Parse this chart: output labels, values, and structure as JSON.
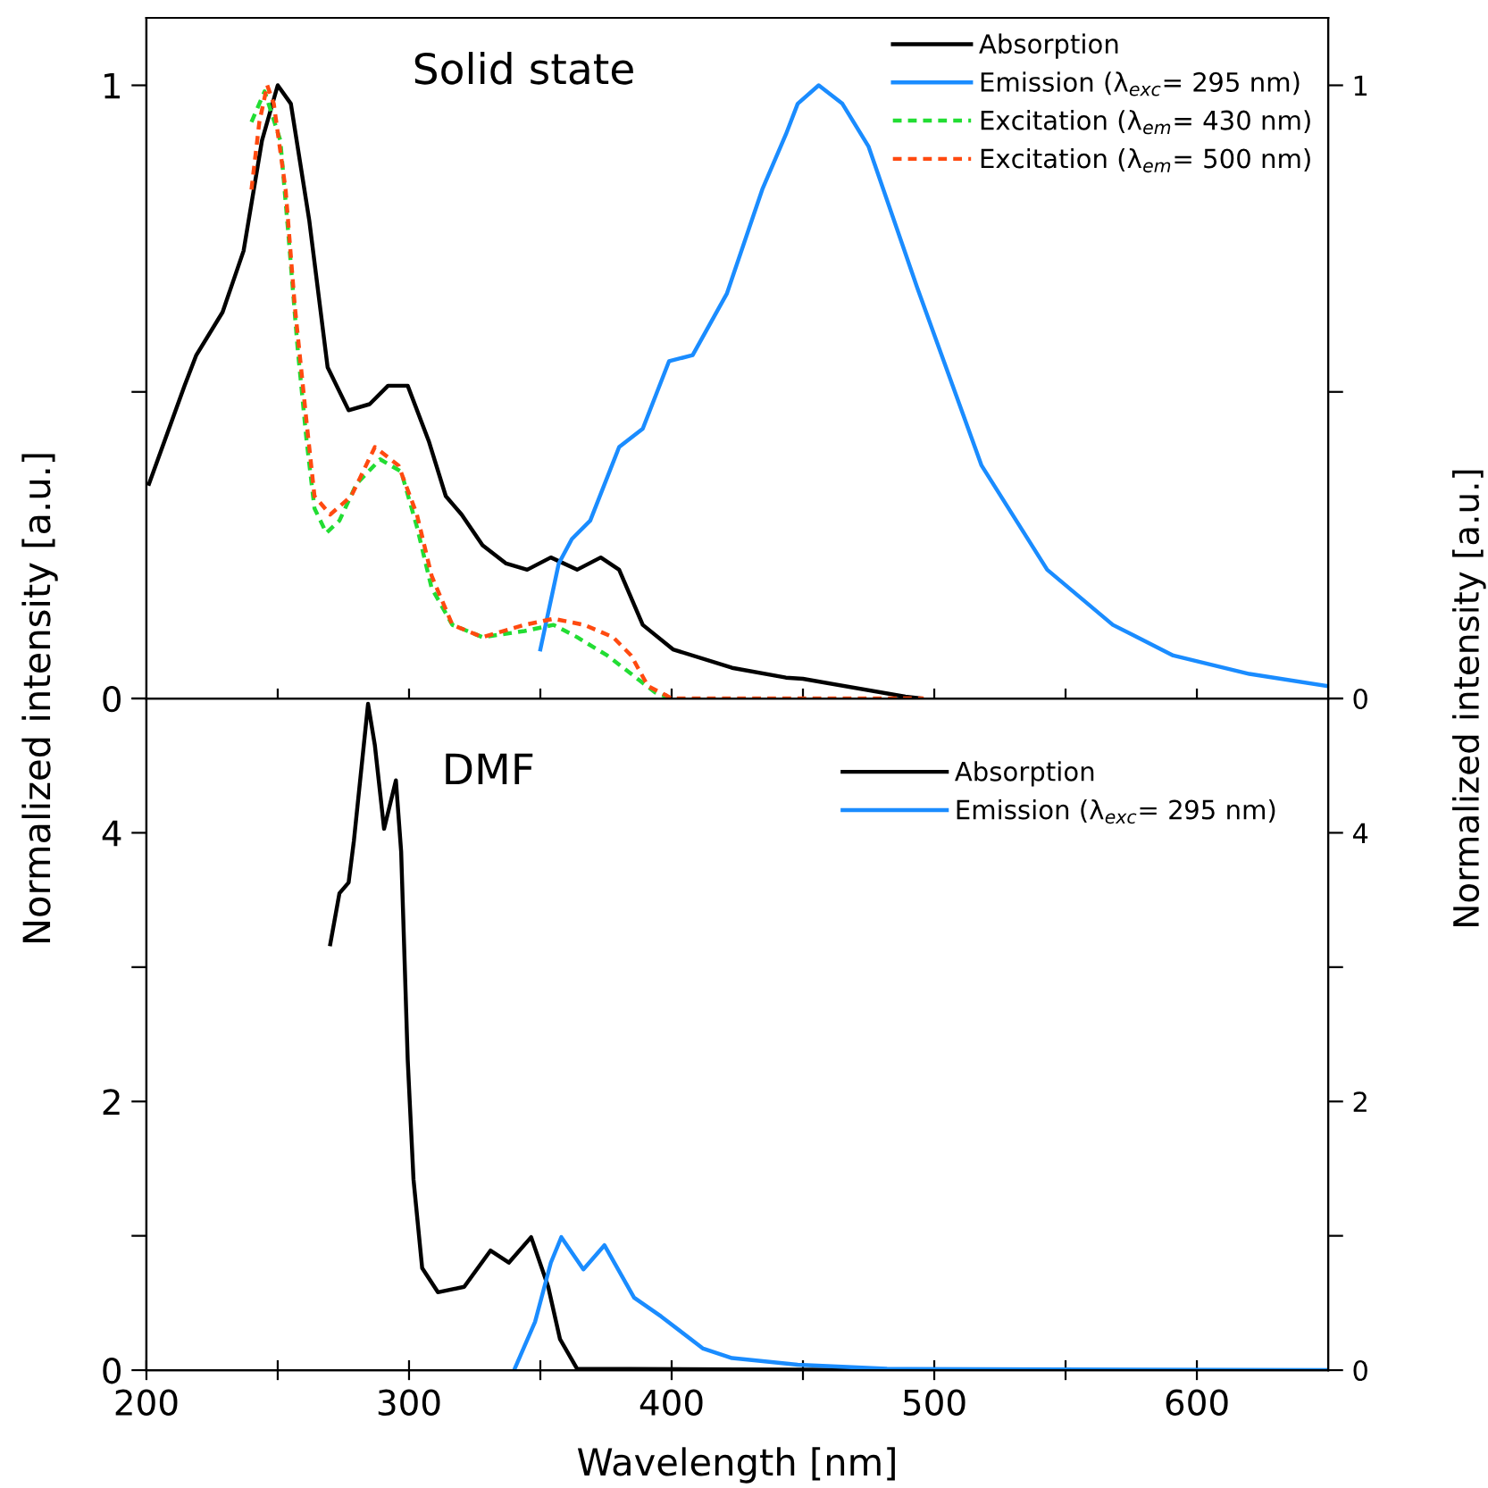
{
  "chart_data": [
    {
      "type": "line",
      "ylabel": "Normalized intensity [a.u.]",
      "y2label": "Normalized intensity [a.u.]",
      "annotations": [
        "Solid state"
      ],
      "xlim": [
        200,
        650
      ],
      "xticks": [
        250,
        300,
        350,
        400,
        450,
        500,
        550,
        600
      ],
      "ylim": [
        0,
        1.11
      ],
      "yticks": [
        0,
        {
          "value": 0.5,
          "label": null
        },
        1
      ],
      "y2lim": [
        0,
        1.11
      ],
      "y2ticks": [
        0,
        {
          "value": 0.5,
          "label": null
        },
        1
      ],
      "tick_labels": "y",
      "legend": "top right",
      "grid": false,
      "series": [
        {
          "name": "Absorption",
          "color": "#000000",
          "line_style": "solid",
          "x": [
            201,
            214.5,
            219,
            229,
            237,
            244,
            250,
            255,
            262,
            269,
            277,
            285,
            292,
            299.5,
            307.5,
            314,
            320,
            328,
            337,
            345,
            354,
            364,
            373,
            380,
            389,
            400.5,
            423,
            443.5,
            450,
            489,
            495
          ],
          "values": [
            0.35,
            0.51,
            0.56,
            0.63,
            0.73,
            0.91,
            1.0,
            0.97,
            0.78,
            0.54,
            0.47,
            0.48,
            0.51,
            0.51,
            0.42,
            0.33,
            0.3,
            0.25,
            0.22,
            0.21,
            0.23,
            0.21,
            0.23,
            0.21,
            0.12,
            0.08,
            0.05,
            0.034,
            0.032,
            0.003,
            0
          ]
        },
        {
          "name": "Emission (λ$_{exc}$= 295 nm)",
          "color": "#1a8cff",
          "line_style": "solid",
          "x": [
            350,
            357,
            362,
            369,
            380,
            389,
            399,
            408,
            421,
            434.5,
            443.5,
            448,
            456,
            465,
            475,
            493.5,
            518,
            543,
            568,
            591,
            620,
            650
          ],
          "values": [
            0.08,
            0.22,
            0.26,
            0.29,
            0.41,
            0.44,
            0.55,
            0.56,
            0.66,
            0.83,
            0.92,
            0.97,
            1.0,
            0.97,
            0.9,
            0.67,
            0.38,
            0.21,
            0.12,
            0.07,
            0.04,
            0.02
          ]
        },
        {
          "name": "Excitation (λ$_{em}$= 430 nm)",
          "color": "#22dd33",
          "line_style": "dashed",
          "x": [
            240,
            245,
            251,
            254,
            257.6,
            261,
            264,
            268.5,
            273.5,
            280,
            289,
            297,
            303,
            308.6,
            316.5,
            328,
            344,
            355,
            364,
            375.5,
            384.6,
            393.7,
            400
          ],
          "values": [
            0.94,
            0.99,
            0.91,
            0.76,
            0.57,
            0.42,
            0.31,
            0.27,
            0.29,
            0.35,
            0.39,
            0.37,
            0.28,
            0.18,
            0.12,
            0.1,
            0.11,
            0.12,
            0.1,
            0.07,
            0.04,
            0.01,
            0
          ]
        },
        {
          "name": "Excitation (λ$_{em}$= 500 nm)",
          "color": "#ff4a10",
          "line_style": "dashed",
          "x": [
            240,
            243,
            246,
            248.5,
            253,
            256.5,
            261,
            264,
            270,
            278,
            287,
            296,
            303,
            308.6,
            316.5,
            328,
            344,
            355,
            366.7,
            377.7,
            384.6,
            391,
            398,
            400,
            496
          ],
          "values": [
            0.83,
            0.94,
            1.0,
            0.97,
            0.83,
            0.64,
            0.45,
            0.33,
            0.3,
            0.33,
            0.41,
            0.38,
            0.3,
            0.2,
            0.12,
            0.1,
            0.12,
            0.13,
            0.12,
            0.1,
            0.07,
            0.02,
            0.005,
            0,
            0
          ]
        }
      ]
    },
    {
      "type": "line",
      "xlabel": "Wavelength [nm]",
      "annotations": [
        "DMF"
      ],
      "xlim": [
        200,
        650
      ],
      "xticks": [
        200,
        {
          "value": 250,
          "label": null
        },
        300,
        {
          "value": 350,
          "label": null
        },
        400,
        {
          "value": 450,
          "label": null
        },
        500,
        {
          "value": 550,
          "label": null
        },
        600
      ],
      "ylim": [
        0,
        5
      ],
      "yticks": [
        0,
        {
          "value": 1,
          "label": null
        },
        2,
        {
          "value": 3,
          "label": null
        },
        4,
        {
          "value": 5,
          "label": null
        }
      ],
      "y2lim": [
        0,
        5
      ],
      "y2ticks": [
        0,
        {
          "value": 1,
          "label": null
        },
        2,
        {
          "value": 3,
          "label": null
        },
        4,
        {
          "value": 5,
          "label": null
        }
      ],
      "legend": "top right",
      "grid": false,
      "series": [
        {
          "name": "Absorption",
          "color": "#000000",
          "line_style": "solid",
          "x": [
            270,
            273.5,
            277,
            279,
            284.4,
            287,
            290.5,
            295,
            297,
            299.5,
            301.7,
            305,
            311,
            321,
            331,
            338,
            346.5,
            353,
            357.5,
            364,
            500
          ],
          "values": [
            3.17,
            3.55,
            3.63,
            3.94,
            4.96,
            4.65,
            4.03,
            4.39,
            3.86,
            2.31,
            1.42,
            0.76,
            0.58,
            0.62,
            0.89,
            0.8,
            0.99,
            0.62,
            0.23,
            0.01,
            0
          ]
        },
        {
          "name": "Emission (λ$_{exc}$= 295 nm)",
          "color": "#1a8cff",
          "line_style": "solid",
          "x": [
            340,
            348,
            354,
            358,
            366.4,
            374.4,
            385.7,
            396,
            412,
            423,
            448,
            482,
            650
          ],
          "values": [
            0,
            0.36,
            0.8,
            0.99,
            0.75,
            0.93,
            0.54,
            0.4,
            0.16,
            0.09,
            0.04,
            0.01,
            0
          ]
        }
      ]
    }
  ]
}
